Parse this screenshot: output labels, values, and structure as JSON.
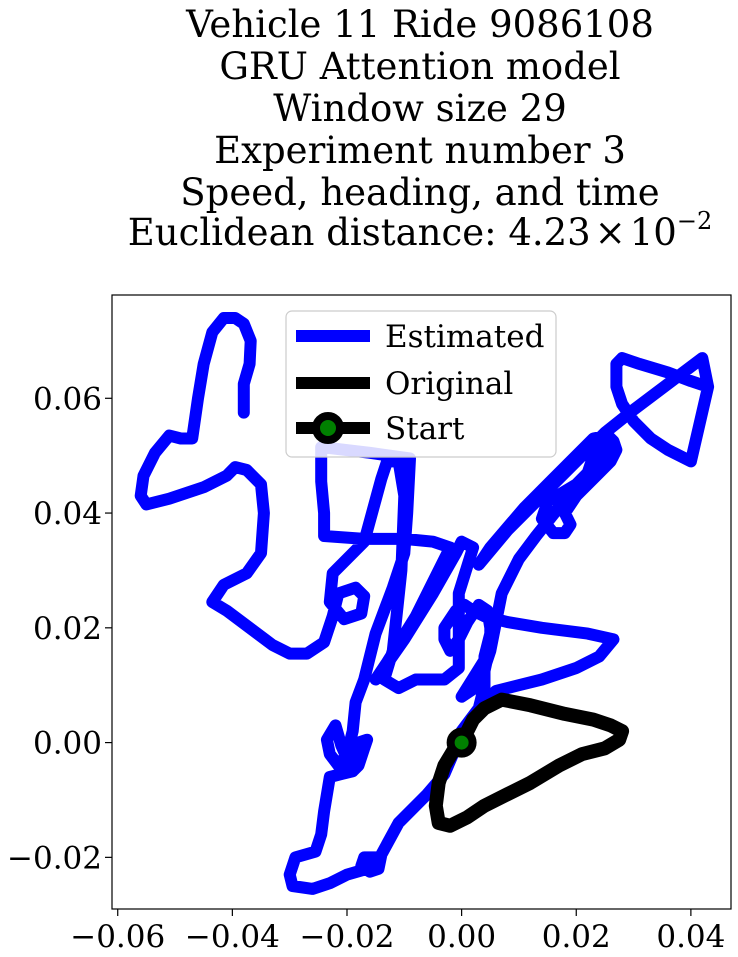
{
  "chart_data": {
    "type": "line",
    "title_lines": [
      "Vehicle 11 Ride 9086108",
      "GRU Attention model",
      "Window size 29",
      "Experiment number 3",
      "Speed, heading, and time"
    ],
    "title_last": {
      "prefix": "Euclidean distance: 4.23",
      "times": "×",
      "base": "10",
      "exponent": "−2"
    },
    "xlim": [
      -0.061,
      0.047
    ],
    "ylim": [
      -0.029,
      0.078
    ],
    "x_ticks": [
      {
        "value": -0.06,
        "label": "−0.06"
      },
      {
        "value": -0.04,
        "label": "−0.04"
      },
      {
        "value": -0.02,
        "label": "−0.02"
      },
      {
        "value": 0.0,
        "label": "0.00"
      },
      {
        "value": 0.02,
        "label": "0.02"
      },
      {
        "value": 0.04,
        "label": "0.04"
      }
    ],
    "y_ticks": [
      {
        "value": -0.02,
        "label": "−0.02"
      },
      {
        "value": 0.0,
        "label": "0.00"
      },
      {
        "value": 0.02,
        "label": "0.02"
      },
      {
        "value": 0.04,
        "label": "0.04"
      },
      {
        "value": 0.06,
        "label": "0.06"
      }
    ],
    "legend": {
      "location": "upper center",
      "entries": [
        "Estimated",
        "Original",
        "Start"
      ]
    },
    "series": [
      {
        "name": "Estimated",
        "color": "#0000ff",
        "points": [
          [
            -0.038,
            0.0575
          ],
          [
            -0.038,
            0.0625
          ],
          [
            -0.037,
            0.066
          ],
          [
            -0.0368,
            0.07
          ],
          [
            -0.038,
            0.073
          ],
          [
            -0.0395,
            0.074
          ],
          [
            -0.0415,
            0.074
          ],
          [
            -0.0435,
            0.0715
          ],
          [
            -0.045,
            0.066
          ],
          [
            -0.046,
            0.06
          ],
          [
            -0.047,
            0.053
          ],
          [
            -0.049,
            0.053
          ],
          [
            -0.051,
            0.0535
          ],
          [
            -0.0535,
            0.0505
          ],
          [
            -0.0555,
            0.0465
          ],
          [
            -0.056,
            0.043
          ],
          [
            -0.055,
            0.0415
          ],
          [
            -0.051,
            0.0425
          ],
          [
            -0.045,
            0.0445
          ],
          [
            -0.041,
            0.0465
          ],
          [
            -0.0395,
            0.048
          ],
          [
            -0.0375,
            0.0475
          ],
          [
            -0.035,
            0.045
          ],
          [
            -0.0345,
            0.04
          ],
          [
            -0.035,
            0.033
          ],
          [
            -0.0375,
            0.0295
          ],
          [
            -0.0415,
            0.0275
          ],
          [
            -0.0435,
            0.0245
          ],
          [
            -0.041,
            0.023
          ],
          [
            -0.037,
            0.02
          ],
          [
            -0.033,
            0.017
          ],
          [
            -0.03,
            0.0155
          ],
          [
            -0.027,
            0.0155
          ],
          [
            -0.024,
            0.0175
          ],
          [
            -0.0225,
            0.022
          ],
          [
            -0.0215,
            0.026
          ],
          [
            -0.0185,
            0.027
          ],
          [
            -0.017,
            0.0255
          ],
          [
            -0.0175,
            0.0225
          ],
          [
            -0.0205,
            0.0215
          ],
          [
            -0.023,
            0.0245
          ],
          [
            -0.0225,
            0.0295
          ],
          [
            -0.017,
            0.035
          ],
          [
            -0.014,
            0.046
          ],
          [
            -0.013,
            0.049
          ],
          [
            -0.011,
            0.049
          ],
          [
            -0.01,
            0.043
          ],
          [
            -0.0105,
            0.03
          ],
          [
            -0.012,
            0.016
          ],
          [
            -0.0135,
            0.011
          ],
          [
            -0.011,
            0.0095
          ],
          [
            -0.008,
            0.011
          ],
          [
            -0.003,
            0.011
          ],
          [
            -0.0005,
            0.013
          ],
          [
            -0.0005,
            0.026
          ],
          [
            0.002,
            0.034
          ],
          [
            0.0,
            0.035
          ],
          [
            -0.001,
            0.033
          ],
          [
            -0.005,
            0.026
          ],
          [
            -0.01,
            0.018
          ],
          [
            -0.0135,
            0.013
          ],
          [
            -0.015,
            0.011
          ],
          [
            -0.013,
            0.014
          ],
          [
            -0.008,
            0.022
          ],
          [
            -0.004,
            0.03
          ],
          [
            -0.002,
            0.034
          ],
          [
            -0.005,
            0.035
          ],
          [
            -0.01,
            0.0355
          ],
          [
            -0.017,
            0.0355
          ],
          [
            -0.024,
            0.036
          ],
          [
            -0.024,
            0.04
          ],
          [
            -0.0245,
            0.0455
          ],
          [
            -0.0245,
            0.0515
          ],
          [
            -0.016,
            0.0505
          ],
          [
            -0.009,
            0.0495
          ],
          [
            -0.0095,
            0.04
          ],
          [
            -0.01,
            0.033
          ],
          [
            -0.012,
            0.027
          ],
          [
            -0.015,
            0.019
          ],
          [
            -0.017,
            0.011
          ],
          [
            -0.0185,
            0.007
          ],
          [
            -0.019,
            0.002
          ],
          [
            -0.02,
            -0.002
          ],
          [
            -0.0215,
            -0.004
          ],
          [
            -0.023,
            -0.002
          ],
          [
            -0.0235,
            0.0005
          ],
          [
            -0.022,
            0.003
          ],
          [
            -0.021,
            -0.0005
          ],
          [
            -0.019,
            -0.005
          ],
          [
            -0.018,
            -0.004
          ],
          [
            -0.017,
            -0.001
          ],
          [
            -0.0165,
            0.0005
          ],
          [
            -0.018,
            0.0
          ],
          [
            -0.0185,
            -0.003
          ],
          [
            -0.019,
            -0.005
          ],
          [
            -0.021,
            -0.0055
          ],
          [
            -0.023,
            -0.006
          ],
          [
            -0.024,
            -0.012
          ],
          [
            -0.0245,
            -0.016
          ],
          [
            -0.0255,
            -0.019
          ],
          [
            -0.029,
            -0.02
          ],
          [
            -0.03,
            -0.023
          ],
          [
            -0.0295,
            -0.025
          ],
          [
            -0.026,
            -0.0255
          ],
          [
            -0.023,
            -0.0245
          ],
          [
            -0.02,
            -0.023
          ],
          [
            -0.0165,
            -0.022
          ],
          [
            -0.0145,
            -0.021
          ],
          [
            -0.015,
            -0.02
          ],
          [
            -0.017,
            -0.02
          ],
          [
            -0.0175,
            -0.0215
          ],
          [
            -0.016,
            -0.0225
          ],
          [
            -0.0145,
            -0.022
          ],
          [
            -0.014,
            -0.0195
          ],
          [
            -0.011,
            -0.014
          ],
          [
            -0.006,
            -0.009
          ],
          [
            -0.003,
            -0.0055
          ],
          [
            -0.0015,
            -0.002
          ],
          [
            0.0,
            0.002
          ],
          [
            0.003,
            0.006
          ],
          [
            0.004,
            0.01
          ],
          [
            0.004,
            0.015
          ],
          [
            0.005,
            0.019
          ],
          [
            0.005,
            0.017
          ],
          [
            0.004,
            0.0125
          ],
          [
            0.004,
            0.007
          ],
          [
            0.006,
            0.009
          ],
          [
            0.01,
            0.01
          ],
          [
            0.014,
            0.011
          ],
          [
            0.02,
            0.013
          ],
          [
            0.024,
            0.015
          ],
          [
            0.0265,
            0.018
          ],
          [
            0.022,
            0.019
          ],
          [
            0.014,
            0.02
          ],
          [
            0.008,
            0.021
          ],
          [
            0.004,
            0.022
          ],
          [
            0.002,
            0.023
          ],
          [
            0.0005,
            0.024
          ],
          [
            -0.001,
            0.023
          ],
          [
            -0.003,
            0.02
          ],
          [
            -0.003,
            0.018
          ],
          [
            -0.002,
            0.016
          ],
          [
            -0.0005,
            0.018
          ],
          [
            0.001,
            0.021
          ],
          [
            0.003,
            0.024
          ],
          [
            0.0045,
            0.023
          ],
          [
            0.005,
            0.02
          ],
          [
            0.005,
            0.016
          ],
          [
            0.0,
            0.008
          ],
          [
            0.003,
            0.01
          ],
          [
            0.005,
            0.016
          ],
          [
            0.007,
            0.026
          ],
          [
            0.01,
            0.032
          ],
          [
            0.013,
            0.036
          ],
          [
            0.017,
            0.041
          ],
          [
            0.02,
            0.044
          ],
          [
            0.022,
            0.047
          ],
          [
            0.023,
            0.05
          ],
          [
            0.024,
            0.051
          ],
          [
            0.026,
            0.052
          ],
          [
            0.023,
            0.048
          ],
          [
            0.02,
            0.045
          ],
          [
            0.015,
            0.042
          ],
          [
            0.014,
            0.039
          ],
          [
            0.016,
            0.0365
          ],
          [
            0.018,
            0.0365
          ],
          [
            0.019,
            0.038
          ],
          [
            0.018,
            0.04
          ],
          [
            0.02,
            0.043
          ],
          [
            0.022,
            0.045
          ],
          [
            0.024,
            0.047
          ],
          [
            0.026,
            0.049
          ],
          [
            0.027,
            0.051
          ],
          [
            0.0265,
            0.0525
          ],
          [
            0.0255,
            0.0535
          ],
          [
            0.023,
            0.053
          ],
          [
            0.016,
            0.046
          ],
          [
            0.011,
            0.041
          ],
          [
            0.005,
            0.034
          ],
          [
            0.003,
            0.031
          ],
          [
            0.008,
            0.037
          ],
          [
            0.014,
            0.043
          ],
          [
            0.02,
            0.049
          ],
          [
            0.025,
            0.054
          ],
          [
            0.03,
            0.058
          ],
          [
            0.034,
            0.061
          ],
          [
            0.038,
            0.064
          ],
          [
            0.042,
            0.067
          ],
          [
            0.043,
            0.062
          ],
          [
            0.04,
            0.063
          ],
          [
            0.036,
            0.0645
          ],
          [
            0.031,
            0.066
          ],
          [
            0.028,
            0.067
          ],
          [
            0.027,
            0.066
          ],
          [
            0.027,
            0.062
          ],
          [
            0.028,
            0.059
          ],
          [
            0.03,
            0.056
          ],
          [
            0.033,
            0.053
          ],
          [
            0.036,
            0.051
          ],
          [
            0.04,
            0.049
          ],
          [
            0.043,
            0.062
          ]
        ]
      },
      {
        "name": "Original",
        "color": "#000000",
        "points": [
          [
            0.0,
            0.0
          ],
          [
            0.002,
            0.004
          ],
          [
            0.004,
            0.006
          ],
          [
            0.007,
            0.0075
          ],
          [
            0.012,
            0.0065
          ],
          [
            0.018,
            0.005
          ],
          [
            0.023,
            0.004
          ],
          [
            0.026,
            0.003
          ],
          [
            0.028,
            0.002
          ],
          [
            0.0275,
            0.0005
          ],
          [
            0.025,
            -0.001
          ],
          [
            0.021,
            -0.002
          ],
          [
            0.017,
            -0.004
          ],
          [
            0.012,
            -0.007
          ],
          [
            0.008,
            -0.009
          ],
          [
            0.004,
            -0.011
          ],
          [
            0.001,
            -0.013
          ],
          [
            -0.002,
            -0.0145
          ],
          [
            -0.004,
            -0.014
          ],
          [
            -0.0045,
            -0.011
          ],
          [
            -0.004,
            -0.007
          ],
          [
            -0.003,
            -0.004
          ],
          [
            -0.0015,
            -0.0015
          ],
          [
            0.0,
            0.0
          ]
        ]
      }
    ],
    "start_point": {
      "label": "Start",
      "x": 0.0,
      "y": 0.0,
      "color": "#008000",
      "edge_color": "#000000"
    }
  }
}
